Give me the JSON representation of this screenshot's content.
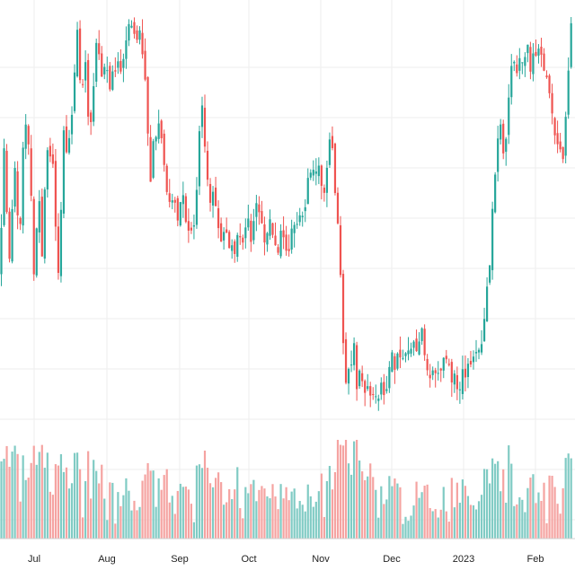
{
  "chart_data": {
    "type": "candlestick",
    "title": "",
    "xlabel": "",
    "ylabel": "",
    "x_tick_labels": [
      "Jul",
      "Aug",
      "Sep",
      "Oct",
      "Nov",
      "Dec",
      "2023",
      "Feb"
    ],
    "y_range": [
      0,
      100
    ],
    "grid": true,
    "legend": "none",
    "volume_panel": true,
    "colors": {
      "up": "#26a69a",
      "down": "#ef5350",
      "up_volume": "#80cbc4",
      "down_volume": "#f5a3a1",
      "grid": "#eeeeee",
      "axis_text": "#222222"
    },
    "close_path": [
      [
        0,
        42
      ],
      [
        5,
        70
      ],
      [
        10,
        44
      ],
      [
        16,
        64
      ],
      [
        22,
        49
      ],
      [
        27,
        78
      ],
      [
        33,
        68
      ],
      [
        38,
        40
      ],
      [
        43,
        58
      ],
      [
        47,
        44
      ],
      [
        52,
        70
      ],
      [
        58,
        66
      ],
      [
        62,
        53
      ],
      [
        66,
        40
      ],
      [
        71,
        74
      ],
      [
        76,
        66
      ],
      [
        82,
        84
      ],
      [
        86,
        95
      ],
      [
        90,
        80
      ],
      [
        95,
        88
      ],
      [
        100,
        70
      ],
      [
        104,
        80
      ],
      [
        108,
        93
      ],
      [
        112,
        84
      ],
      [
        117,
        89
      ],
      [
        121,
        81
      ],
      [
        126,
        84
      ],
      [
        131,
        90
      ],
      [
        136,
        86
      ],
      [
        140,
        93
      ],
      [
        145,
        96
      ],
      [
        150,
        92
      ],
      [
        155,
        97
      ],
      [
        160,
        88
      ],
      [
        164,
        72
      ],
      [
        167,
        62
      ],
      [
        171,
        70
      ],
      [
        175,
        74
      ],
      [
        180,
        69
      ],
      [
        184,
        60
      ],
      [
        188,
        56
      ],
      [
        193,
        57
      ],
      [
        198,
        54
      ],
      [
        203,
        58
      ],
      [
        207,
        51
      ],
      [
        211,
        53
      ],
      [
        215,
        48
      ],
      [
        219,
        58
      ],
      [
        222,
        72
      ],
      [
        226,
        78
      ],
      [
        230,
        64
      ],
      [
        234,
        56
      ],
      [
        238,
        58
      ],
      [
        242,
        54
      ],
      [
        246,
        50
      ],
      [
        251,
        51
      ],
      [
        255,
        48
      ],
      [
        260,
        46
      ],
      [
        265,
        52
      ],
      [
        270,
        48
      ],
      [
        275,
        54
      ],
      [
        280,
        49
      ],
      [
        285,
        58
      ],
      [
        290,
        54
      ],
      [
        295,
        48
      ],
      [
        300,
        52
      ],
      [
        305,
        49
      ],
      [
        310,
        47
      ],
      [
        315,
        51
      ],
      [
        320,
        46
      ],
      [
        325,
        50
      ],
      [
        330,
        51
      ],
      [
        335,
        55
      ],
      [
        340,
        57
      ],
      [
        343,
        63
      ],
      [
        347,
        66
      ],
      [
        351,
        64
      ],
      [
        355,
        66
      ],
      [
        359,
        60
      ],
      [
        363,
        62
      ],
      [
        367,
        70
      ],
      [
        371,
        67
      ],
      [
        375,
        55
      ],
      [
        378,
        44
      ],
      [
        381,
        30
      ],
      [
        384,
        16
      ],
      [
        387,
        24
      ],
      [
        390,
        18
      ],
      [
        393,
        28
      ],
      [
        397,
        16
      ],
      [
        401,
        20
      ],
      [
        405,
        18
      ],
      [
        409,
        14
      ],
      [
        413,
        16
      ],
      [
        417,
        12
      ],
      [
        421,
        15
      ],
      [
        425,
        20
      ],
      [
        429,
        14
      ],
      [
        433,
        22
      ],
      [
        437,
        24
      ],
      [
        441,
        20
      ],
      [
        445,
        24
      ],
      [
        449,
        22
      ],
      [
        453,
        25
      ],
      [
        457,
        23
      ],
      [
        461,
        26
      ],
      [
        465,
        24
      ],
      [
        469,
        28
      ],
      [
        473,
        21
      ],
      [
        477,
        17
      ],
      [
        481,
        22
      ],
      [
        485,
        20
      ],
      [
        489,
        21
      ],
      [
        493,
        20
      ],
      [
        497,
        22
      ],
      [
        501,
        18
      ],
      [
        505,
        20
      ],
      [
        509,
        17
      ],
      [
        513,
        18
      ],
      [
        517,
        19
      ],
      [
        521,
        21
      ],
      [
        525,
        20
      ],
      [
        529,
        22
      ],
      [
        533,
        26
      ],
      [
        537,
        28
      ],
      [
        541,
        34
      ],
      [
        544,
        40
      ],
      [
        547,
        52
      ],
      [
        550,
        60
      ],
      [
        553,
        68
      ],
      [
        556,
        74
      ],
      [
        559,
        70
      ],
      [
        562,
        66
      ],
      [
        565,
        76
      ],
      [
        568,
        84
      ],
      [
        571,
        88
      ],
      [
        575,
        85
      ],
      [
        579,
        90
      ],
      [
        583,
        88
      ],
      [
        587,
        93
      ],
      [
        591,
        86
      ],
      [
        595,
        92
      ],
      [
        599,
        90
      ],
      [
        603,
        88
      ],
      [
        607,
        82
      ],
      [
        611,
        84
      ],
      [
        615,
        76
      ],
      [
        619,
        66
      ],
      [
        623,
        70
      ],
      [
        627,
        68
      ],
      [
        631,
        82
      ],
      [
        635,
        96
      ],
      [
        639,
        100
      ]
    ]
  }
}
